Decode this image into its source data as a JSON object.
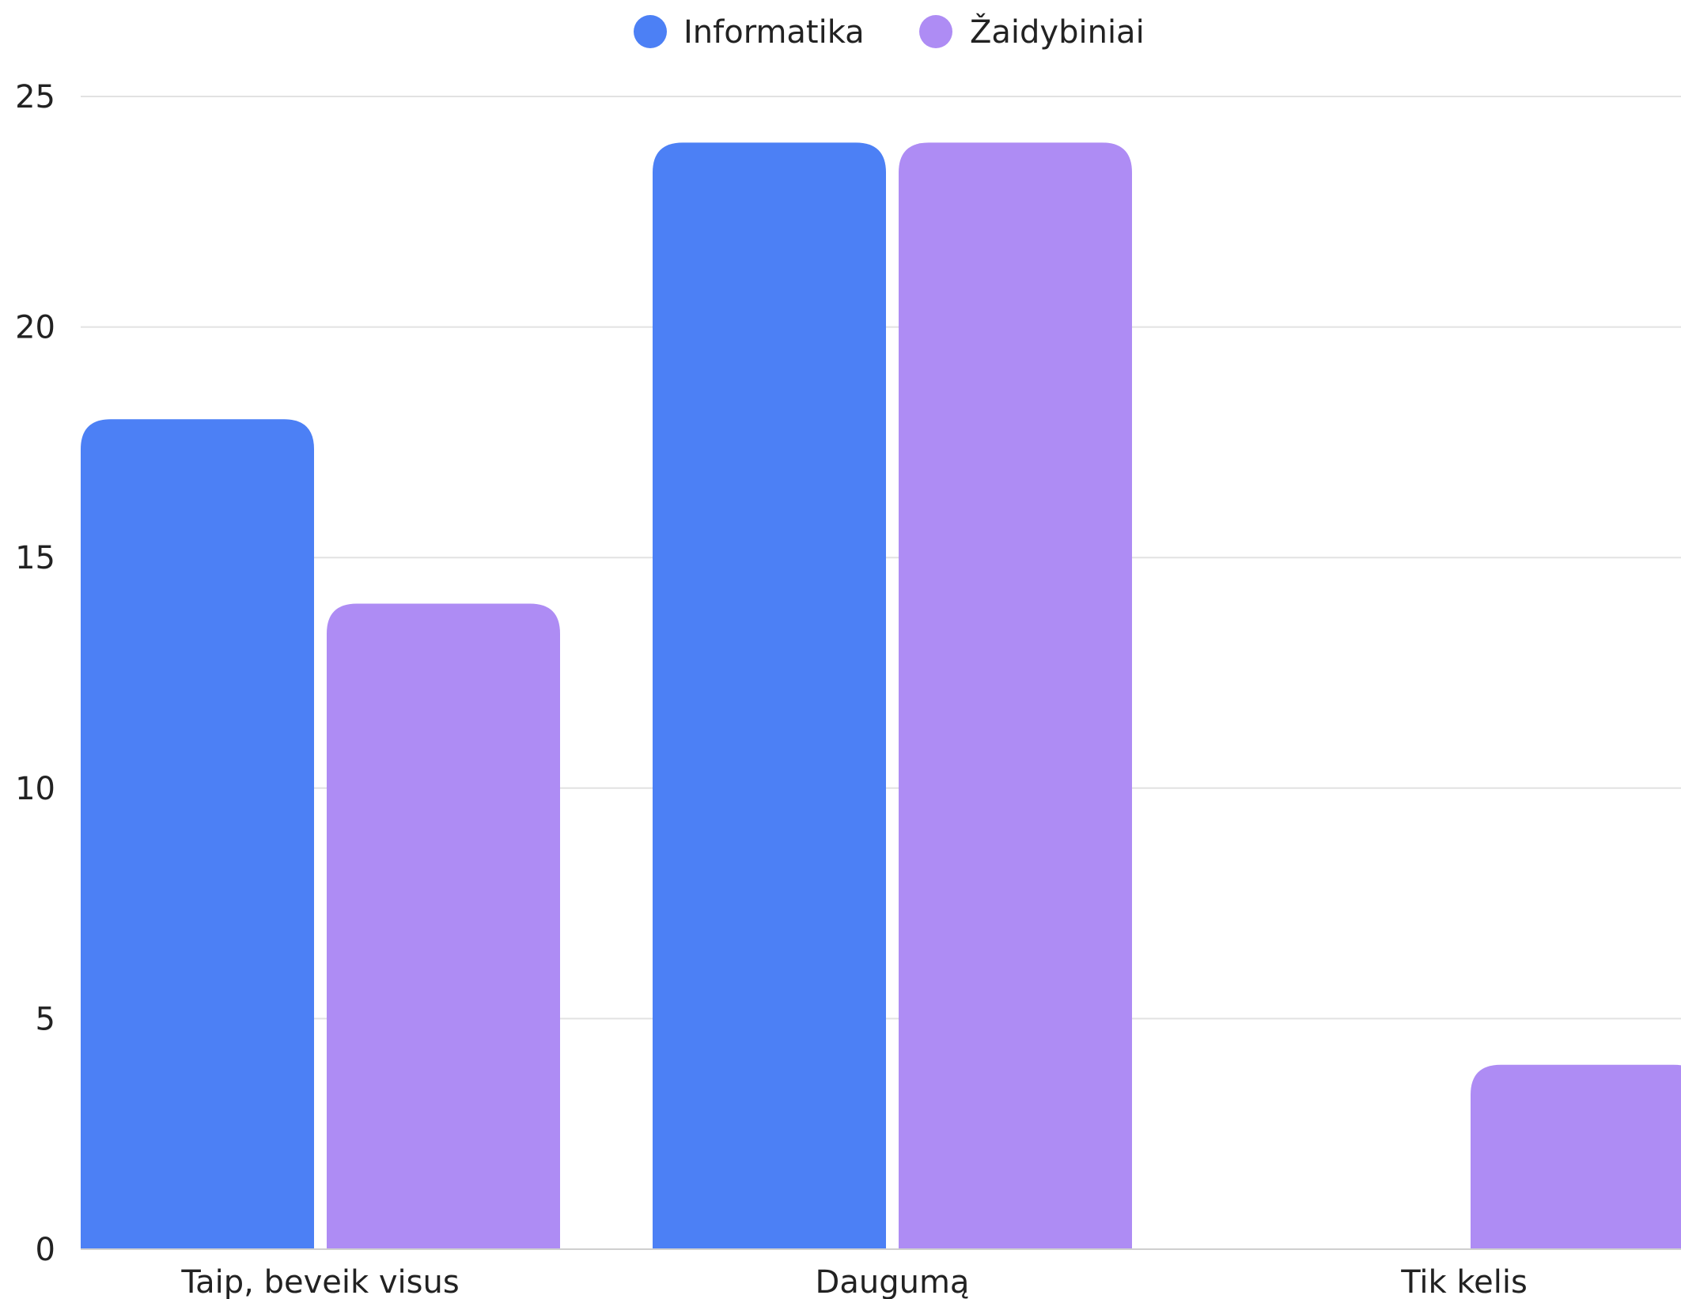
{
  "chart_data": {
    "type": "bar",
    "categories": [
      "Taip, beveik visus",
      "Daugumą",
      "Tik kelis"
    ],
    "series": [
      {
        "name": "Informatika",
        "values": [
          18,
          24,
          0
        ],
        "color": "#4c80f5"
      },
      {
        "name": "Žaidybiniai",
        "values": [
          14,
          24,
          4
        ],
        "color": "#ae8cf4"
      }
    ],
    "ylim": [
      0,
      25
    ],
    "yticks": [
      0,
      5,
      10,
      15,
      20,
      25
    ],
    "grid": true,
    "legend": "top-center",
    "title": "",
    "xlabel": "",
    "ylabel": ""
  }
}
